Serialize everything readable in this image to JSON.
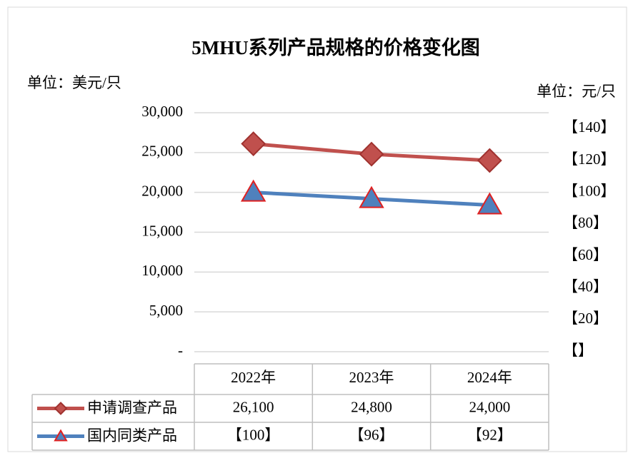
{
  "chart_data": {
    "type": "line",
    "title": "5MHU系列产品规格的价格变化图",
    "y_label": "单位：美元/只",
    "y2_label": "单位：元/只",
    "categories": [
      "2022年",
      "2023年",
      "2024年"
    ],
    "series": [
      {
        "name": "申请调查产品",
        "color": "#c0504d",
        "marker": "diamond",
        "values": [
          26100,
          24800,
          24000
        ],
        "value_labels": [
          "26,100",
          "24,800",
          "24,000"
        ]
      },
      {
        "name": "国内同类产品",
        "color": "#4f81bd",
        "marker": "triangle",
        "axis": "y2",
        "values": [
          100,
          96,
          92
        ],
        "value_labels": [
          "【100】",
          "【96】",
          "【92】"
        ]
      }
    ],
    "ylim": [
      0,
      30000
    ],
    "yticks": [
      {
        "value": 0,
        "label": "-"
      },
      {
        "value": 5000,
        "label": "5,000"
      },
      {
        "value": 10000,
        "label": "10,000"
      },
      {
        "value": 15000,
        "label": "15,000"
      },
      {
        "value": 20000,
        "label": "20,000"
      },
      {
        "value": 25000,
        "label": "25,000"
      },
      {
        "value": 30000,
        "label": "30,000"
      }
    ],
    "y2lim": [
      0,
      150
    ],
    "y2ticks": [
      {
        "value": 0,
        "label": "【】"
      },
      {
        "value": 20,
        "label": "【20】"
      },
      {
        "value": 40,
        "label": "【40】"
      },
      {
        "value": 60,
        "label": "【60】"
      },
      {
        "value": 80,
        "label": "【80】"
      },
      {
        "value": 100,
        "label": "【100】"
      },
      {
        "value": 120,
        "label": "【120】"
      },
      {
        "value": 140,
        "label": "【140】"
      }
    ],
    "grid": true
  }
}
